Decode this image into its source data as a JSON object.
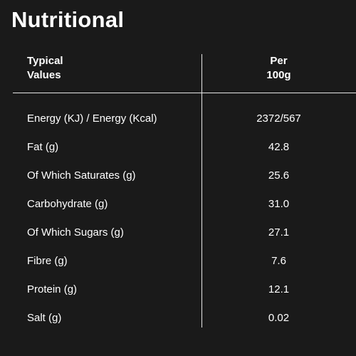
{
  "title": "Nutritional",
  "header": {
    "left_line1": "Typical",
    "left_line2": "Values",
    "right_line1": "Per",
    "right_line2": "100g"
  },
  "rows": [
    {
      "label": "Energy (KJ) / Energy (Kcal)",
      "value": "2372/567"
    },
    {
      "label": "Fat (g)",
      "value": "42.8"
    },
    {
      "label": "Of Which Saturates (g)",
      "value": "25.6"
    },
    {
      "label": "Carbohydrate (g)",
      "value": "31.0"
    },
    {
      "label": "Of Which Sugars (g)",
      "value": "27.1"
    },
    {
      "label": "Fibre (g)",
      "value": "7.6"
    },
    {
      "label": "Protein (g)",
      "value": "12.1"
    },
    {
      "label": "Salt (g)",
      "value": "0.02"
    }
  ],
  "colors": {
    "background": "#1a1a1a",
    "text": "#ffffff",
    "rule": "#e6e6e6"
  }
}
